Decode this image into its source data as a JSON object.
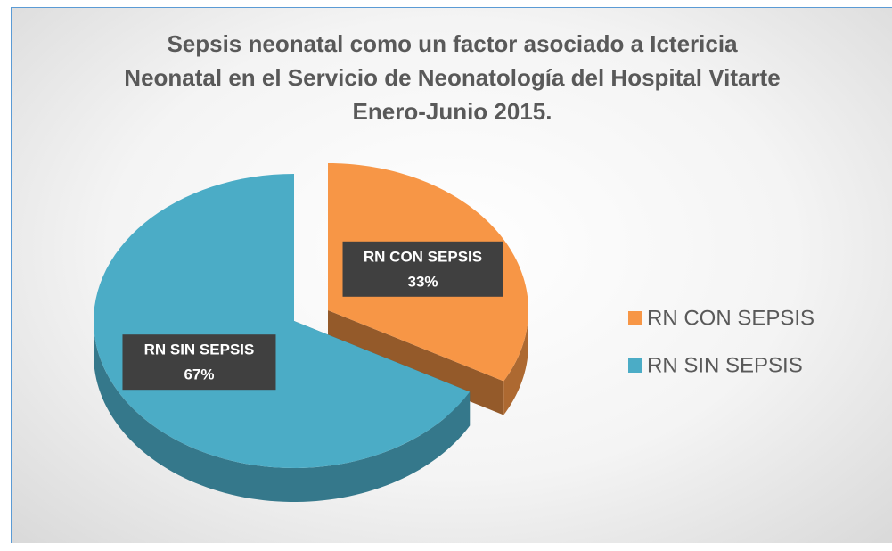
{
  "chart_data": {
    "type": "pie",
    "title": "Sepsis neonatal como un factor asociado a Ictericia Neonatal en el Servicio de Neonatología del Hospital Vitarte Enero-Junio 2015.",
    "categories": [
      "RN CON SEPSIS",
      "RN SIN SEPSIS"
    ],
    "values": [
      33,
      67
    ],
    "value_labels": [
      "33%",
      "67%"
    ],
    "colors": [
      "#f79646",
      "#4bacc6"
    ],
    "legend": "right"
  }
}
